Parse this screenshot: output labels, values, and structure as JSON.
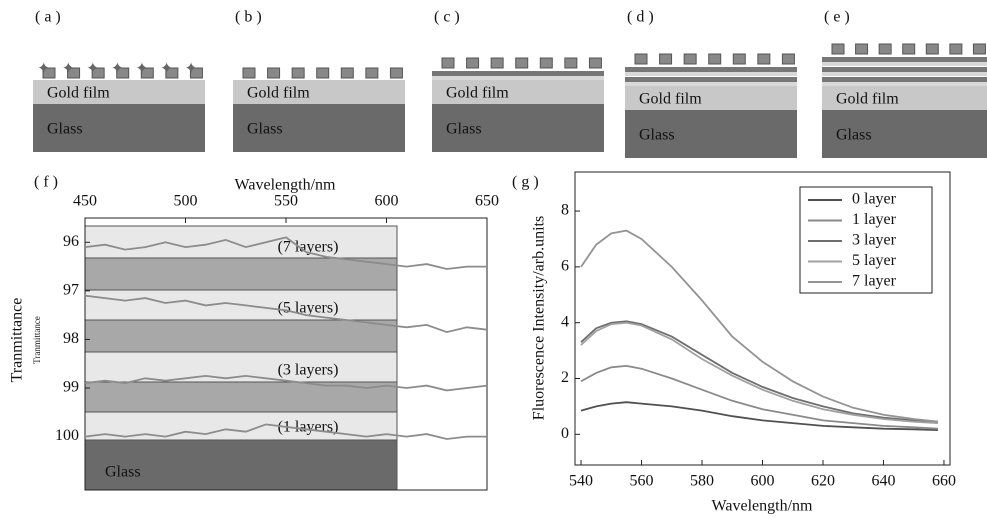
{
  "diagrams": [
    {
      "label": "( a )",
      "gold": "Gold film",
      "glass": "Glass"
    },
    {
      "label": "( b )",
      "gold": "Gold film",
      "glass": "Glass"
    },
    {
      "label": "( c )",
      "gold": "Gold film",
      "glass": "Glass"
    },
    {
      "label": "( d )",
      "gold": "Gold film",
      "glass": "Glass"
    },
    {
      "label": "( e )",
      "gold": "Gold film",
      "glass": "Glass"
    }
  ],
  "chart_data": [
    {
      "type": "line",
      "panel": "( f )",
      "x_label": "Wavelength/nm",
      "y_label": "Tranmittance",
      "y_label_small": "Tranmittance",
      "annotations": [
        "(7 layers)",
        "(5 layers)",
        "(3 layers)",
        "(1 layers)",
        "Glass"
      ],
      "x": [
        450,
        460,
        470,
        480,
        490,
        500,
        510,
        520,
        530,
        540,
        550,
        560,
        570,
        580,
        590,
        600,
        610,
        620,
        630,
        640,
        650
      ],
      "series": [
        {
          "color": "#8c8c8c",
          "values": [
            96.1,
            96.05,
            96.15,
            96.1,
            96.0,
            96.1,
            96.05,
            95.95,
            96.1,
            96.0,
            95.9,
            96.2,
            96.3,
            96.35,
            96.4,
            96.45,
            96.5,
            96.45,
            96.55,
            96.5,
            96.5
          ]
        },
        {
          "color": "#8c8c8c",
          "values": [
            97.1,
            97.15,
            97.2,
            97.15,
            97.25,
            97.2,
            97.3,
            97.25,
            97.3,
            97.35,
            97.4,
            97.5,
            97.55,
            97.6,
            97.65,
            97.7,
            97.75,
            97.7,
            97.85,
            97.75,
            97.8
          ]
        },
        {
          "color": "#8c8c8c",
          "values": [
            98.9,
            98.85,
            98.9,
            98.8,
            98.85,
            98.8,
            98.75,
            98.8,
            98.75,
            98.8,
            98.85,
            98.9,
            98.95,
            98.95,
            99.0,
            98.95,
            99.0,
            98.95,
            99.05,
            99.0,
            98.95
          ]
        },
        {
          "color": "#8c8c8c",
          "values": [
            100.0,
            99.95,
            100.0,
            99.95,
            100.0,
            99.9,
            99.95,
            99.85,
            99.9,
            99.75,
            99.8,
            99.85,
            99.9,
            99.95,
            100.0,
            99.95,
            100.0,
            99.95,
            100.05,
            100.0,
            100.0
          ]
        }
      ],
      "xlim": [
        450,
        650
      ],
      "xticks": [
        450,
        500,
        550,
        600,
        650
      ],
      "ylim": [
        101.1,
        95.5
      ],
      "yticks": [
        96,
        97,
        98,
        99,
        100
      ]
    },
    {
      "type": "line",
      "panel": "( g )",
      "x_label": "Wavelength/nm",
      "y_label": "Fluorescence Intensity/arb.units",
      "x": [
        540,
        545,
        550,
        555,
        560,
        570,
        580,
        590,
        600,
        610,
        620,
        630,
        640,
        650,
        658
      ],
      "series": [
        {
          "name": "0 layer",
          "color": "#505050",
          "values": [
            0.85,
            1.0,
            1.1,
            1.15,
            1.1,
            1.0,
            0.85,
            0.65,
            0.5,
            0.4,
            0.3,
            0.25,
            0.2,
            0.18,
            0.15
          ]
        },
        {
          "name": "1 layer",
          "color": "#8a8a8a",
          "values": [
            1.9,
            2.2,
            2.4,
            2.45,
            2.35,
            2.0,
            1.6,
            1.2,
            0.9,
            0.7,
            0.5,
            0.4,
            0.3,
            0.25,
            0.2
          ]
        },
        {
          "name": "3 layer",
          "color": "#6e6e6e",
          "values": [
            3.3,
            3.8,
            4.0,
            4.05,
            3.95,
            3.5,
            2.85,
            2.2,
            1.7,
            1.3,
            1.0,
            0.75,
            0.6,
            0.5,
            0.45
          ]
        },
        {
          "name": "5 layer",
          "color": "#a0a0a0",
          "values": [
            3.2,
            3.7,
            3.95,
            4.0,
            3.9,
            3.4,
            2.7,
            2.1,
            1.6,
            1.2,
            0.9,
            0.7,
            0.55,
            0.45,
            0.4
          ]
        },
        {
          "name": "7 layer",
          "color": "#939393",
          "values": [
            6.0,
            6.8,
            7.2,
            7.3,
            7.0,
            6.0,
            4.8,
            3.5,
            2.6,
            1.9,
            1.35,
            0.95,
            0.7,
            0.55,
            0.45
          ]
        }
      ],
      "xlim": [
        538,
        662
      ],
      "xticks": [
        540,
        560,
        580,
        600,
        620,
        640,
        660
      ],
      "ylim": [
        -1.1,
        9.4
      ],
      "yticks": [
        0,
        2,
        4,
        6,
        8
      ],
      "legend": "top-right"
    }
  ]
}
